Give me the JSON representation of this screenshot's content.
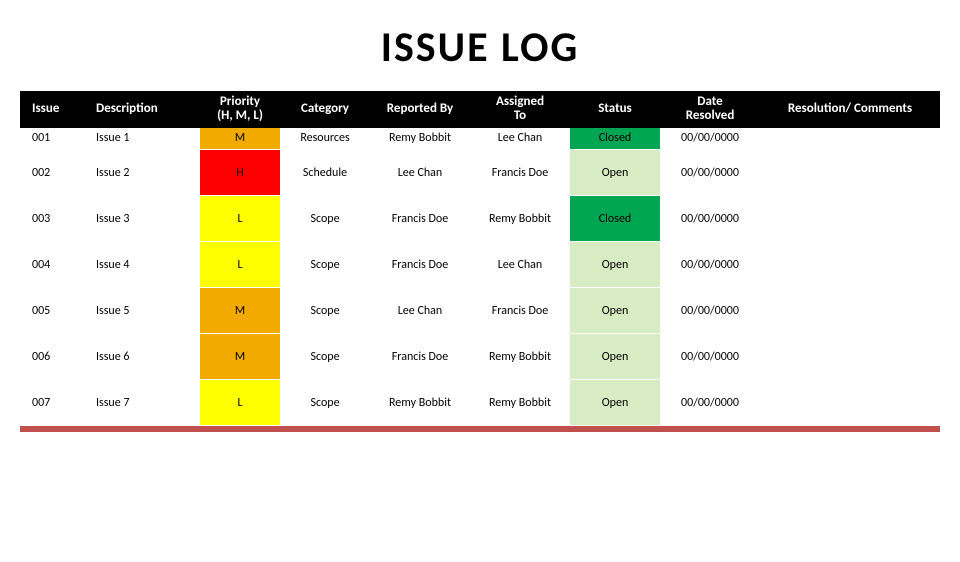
{
  "title": "ISSUE LOG",
  "colors": {
    "header_bg": "#000000",
    "header_text": "#ffffff",
    "priority_H": "#ff0000",
    "priority_M": "#f2a900",
    "priority_L": "#ffff00",
    "status_Closed": "#00a651",
    "status_Open": "#d8ecc3",
    "bottom_bar": "#c0504d"
  },
  "columns": [
    "Issue",
    "Description",
    "Priority\n(H, M, L)",
    "Category",
    "Reported By",
    "Assigned\nTo",
    "Status",
    "Date\nResolved",
    "Resolution/ Comments"
  ],
  "rows": [
    {
      "issue": "001",
      "description": "Issue 1",
      "priority": "M",
      "category": "Resources",
      "reported_by": "Remy Bobbit",
      "assigned_to": "Lee Chan",
      "status": "Closed",
      "date_resolved": "00/00/0000",
      "resolution": ""
    },
    {
      "issue": "002",
      "description": "Issue 2",
      "priority": "H",
      "category": "Schedule",
      "reported_by": "Lee Chan",
      "assigned_to": "Francis Doe",
      "status": "Open",
      "date_resolved": "00/00/0000",
      "resolution": ""
    },
    {
      "issue": "003",
      "description": "Issue 3",
      "priority": "L",
      "category": "Scope",
      "reported_by": "Francis Doe",
      "assigned_to": "Remy Bobbit",
      "status": "Closed",
      "date_resolved": "00/00/0000",
      "resolution": ""
    },
    {
      "issue": "004",
      "description": "Issue 4",
      "priority": "L",
      "category": "Scope",
      "reported_by": "Francis Doe",
      "assigned_to": "Lee Chan",
      "status": "Open",
      "date_resolved": "00/00/0000",
      "resolution": ""
    },
    {
      "issue": "005",
      "description": "Issue 5",
      "priority": "M",
      "category": "Scope",
      "reported_by": "Lee Chan",
      "assigned_to": "Francis Doe",
      "status": "Open",
      "date_resolved": "00/00/0000",
      "resolution": ""
    },
    {
      "issue": "006",
      "description": "Issue 6",
      "priority": "M",
      "category": "Scope",
      "reported_by": "Francis Doe",
      "assigned_to": "Remy Bobbit",
      "status": "Open",
      "date_resolved": "00/00/0000",
      "resolution": ""
    },
    {
      "issue": "007",
      "description": "Issue 7",
      "priority": "L",
      "category": "Scope",
      "reported_by": "Remy Bobbit",
      "assigned_to": "Remy Bobbit",
      "status": "Open",
      "date_resolved": "00/00/0000",
      "resolution": ""
    }
  ]
}
